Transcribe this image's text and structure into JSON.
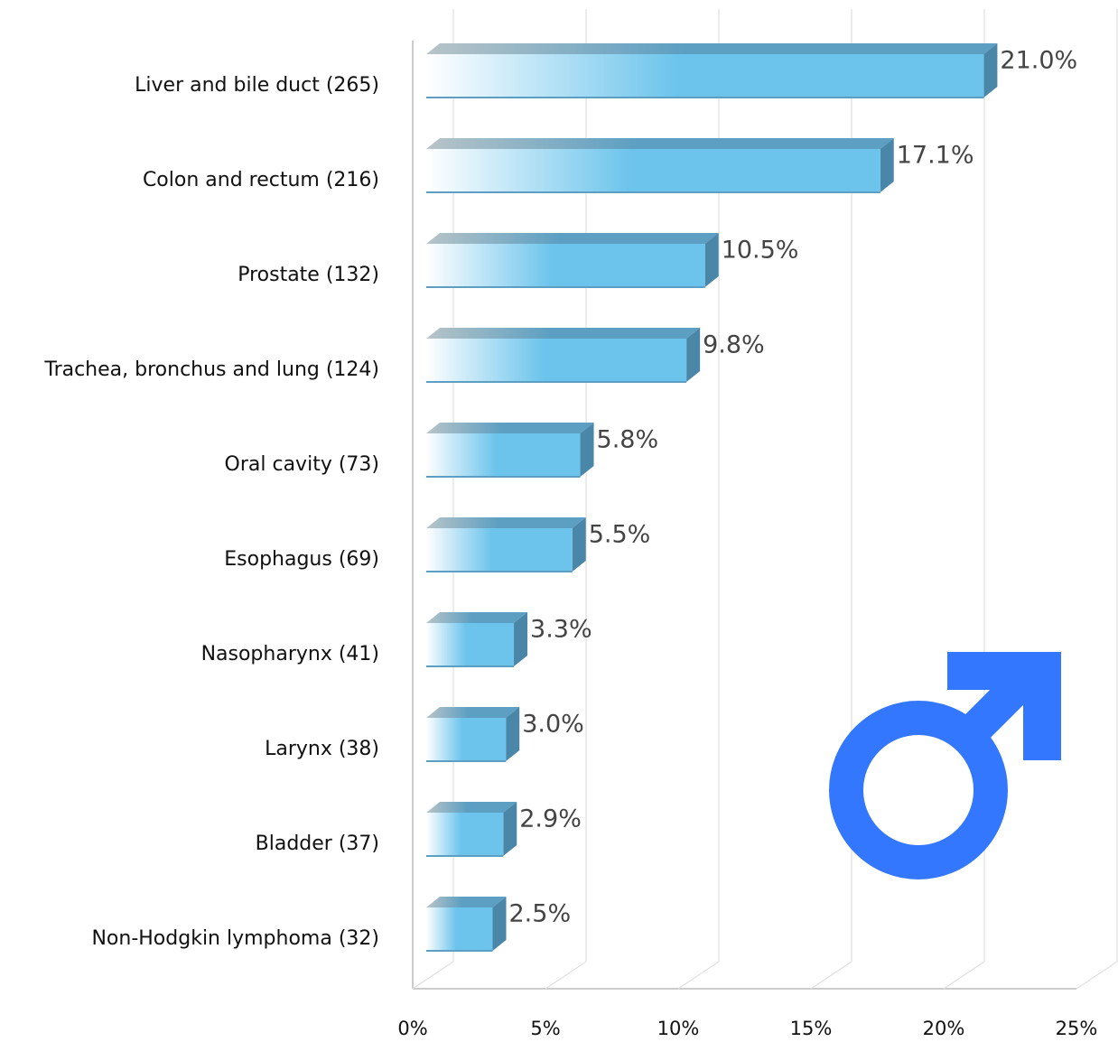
{
  "chart_data": {
    "type": "bar",
    "orientation": "horizontal",
    "categories": [
      "Liver and bile duct (265)",
      "Colon and rectum (216)",
      "Prostate (132)",
      "Trachea, bronchus and lung (124)",
      "Oral cavity (73)",
      "Esophagus (69)",
      "Nasopharynx (41)",
      "Larynx (38)",
      "Bladder (37)",
      "Non-Hodgkin lymphoma (32)"
    ],
    "values": [
      21.0,
      17.1,
      10.5,
      9.8,
      5.8,
      5.5,
      3.3,
      3.0,
      2.9,
      2.5
    ],
    "value_labels": [
      "21.0%",
      "17.1%",
      "10.5%",
      "9.8%",
      "5.8%",
      "5.5%",
      "3.3%",
      "3.0%",
      "2.9%",
      "2.5%"
    ],
    "color": "#6cc4ec",
    "xlim": [
      0,
      25
    ],
    "xticks": [
      {
        "value": 0,
        "label": "0%"
      },
      {
        "value": 5,
        "label": "5%"
      },
      {
        "value": 10,
        "label": "10%"
      },
      {
        "value": 15,
        "label": "15%"
      },
      {
        "value": 20,
        "label": "20%"
      },
      {
        "value": 25,
        "label": "25%"
      }
    ],
    "grid": true
  }
}
